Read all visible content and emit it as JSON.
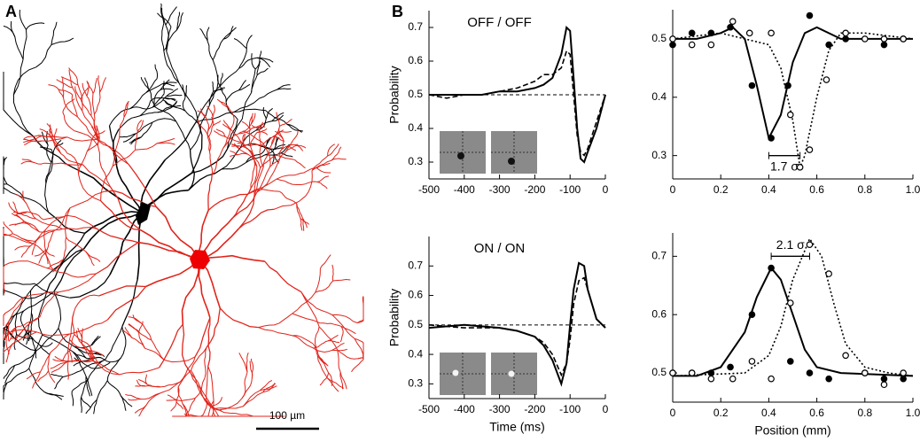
{
  "panel_labels": [
    "A",
    "B"
  ],
  "scale_bar": "100 µm",
  "chart_data": [
    {
      "type": "line",
      "title": "OFF / OFF",
      "ylabel": "Probability",
      "xlim": [
        -500,
        0
      ],
      "ylim": [
        0.25,
        0.75
      ],
      "xticks": [
        -500,
        -400,
        -300,
        -200,
        -100,
        0
      ],
      "yticks": [
        0.3,
        0.4,
        0.5,
        0.6,
        0.7
      ],
      "hline": 0.5,
      "x": [
        -500,
        -450,
        -400,
        -350,
        -300,
        -250,
        -200,
        -175,
        -150,
        -125,
        -110,
        -100,
        -90,
        -80,
        -70,
        -60,
        -50,
        -25,
        0
      ],
      "series": [
        {
          "color": "#000000",
          "style": "solid",
          "values": [
            0.5,
            0.5,
            0.5,
            0.5,
            0.51,
            0.51,
            0.52,
            0.53,
            0.55,
            0.62,
            0.7,
            0.69,
            0.55,
            0.4,
            0.31,
            0.3,
            0.33,
            0.4,
            0.5
          ]
        },
        {
          "color": "#000000",
          "style": "dashed",
          "values": [
            0.5,
            0.49,
            0.5,
            0.5,
            0.51,
            0.52,
            0.54,
            0.56,
            0.56,
            0.58,
            0.63,
            0.62,
            0.5,
            0.38,
            0.33,
            0.32,
            0.34,
            0.42,
            0.5
          ]
        }
      ]
    },
    {
      "type": "line",
      "title": "ON / ON",
      "ylabel": "Probability",
      "xlabel": "Time (ms)",
      "xlim": [
        -500,
        0
      ],
      "ylim": [
        0.25,
        0.8
      ],
      "xticks": [
        -500,
        -400,
        -300,
        -200,
        -100,
        0
      ],
      "yticks": [
        0.3,
        0.4,
        0.5,
        0.6,
        0.7
      ],
      "hline": 0.5,
      "x": [
        -500,
        -400,
        -300,
        -250,
        -200,
        -175,
        -150,
        -125,
        -110,
        -100,
        -90,
        -75,
        -60,
        -50,
        -25,
        0
      ],
      "series": [
        {
          "color": "#000000",
          "style": "solid",
          "values": [
            0.49,
            0.5,
            0.49,
            0.48,
            0.46,
            0.43,
            0.38,
            0.3,
            0.37,
            0.5,
            0.62,
            0.71,
            0.7,
            0.62,
            0.52,
            0.49
          ]
        },
        {
          "color": "#000000",
          "style": "dashed",
          "values": [
            0.5,
            0.49,
            0.49,
            0.48,
            0.46,
            0.44,
            0.4,
            0.33,
            0.37,
            0.45,
            0.57,
            0.65,
            0.66,
            0.62,
            0.52,
            0.49
          ]
        }
      ]
    },
    {
      "type": "line",
      "xlim": [
        0,
        1
      ],
      "ylim": [
        0.26,
        0.55
      ],
      "xticks": [
        0,
        0.2,
        0.4,
        0.6,
        0.8,
        {
          "value": 1,
          "label": "1.0"
        }
      ],
      "yticks": [
        0.3,
        0.4,
        0.5
      ],
      "bracket": {
        "x": [
          0.4,
          0.53
        ],
        "y": 0.3,
        "label": "1.7 σ",
        "label_position": "below"
      },
      "series": [
        {
          "color": "#000000",
          "style": "solid",
          "x": [
            0,
            0.1,
            0.2,
            0.25,
            0.3,
            0.35,
            0.4,
            0.45,
            0.5,
            0.55,
            0.6,
            0.7,
            0.8,
            1
          ],
          "values": [
            0.5,
            0.5,
            0.51,
            0.52,
            0.5,
            0.42,
            0.33,
            0.37,
            0.46,
            0.51,
            0.52,
            0.5,
            0.5,
            0.5
          ]
        },
        {
          "color": "#000000",
          "style": "dotted",
          "x": [
            0,
            0.2,
            0.3,
            0.4,
            0.45,
            0.5,
            0.53,
            0.55,
            0.6,
            0.65,
            0.7,
            0.8,
            1
          ],
          "values": [
            0.5,
            0.51,
            0.5,
            0.49,
            0.45,
            0.36,
            0.28,
            0.3,
            0.4,
            0.48,
            0.51,
            0.51,
            0.5
          ]
        },
        {
          "color": "#000000",
          "style": "points-filled",
          "x": [
            0,
            0.08,
            0.16,
            0.24,
            0.33,
            0.41,
            0.48,
            0.57,
            0.65,
            0.72,
            0.88,
            0.96
          ],
          "values": [
            0.49,
            0.51,
            0.51,
            0.52,
            0.42,
            0.33,
            0.42,
            0.54,
            0.49,
            0.5,
            0.49,
            0.5
          ]
        },
        {
          "color": "#000000",
          "style": "points-open",
          "x": [
            0,
            0.08,
            0.16,
            0.25,
            0.32,
            0.41,
            0.49,
            0.53,
            0.57,
            0.64,
            0.72,
            0.8,
            0.88,
            0.96
          ],
          "values": [
            0.5,
            0.49,
            0.49,
            0.53,
            0.51,
            0.51,
            0.37,
            0.28,
            0.31,
            0.43,
            0.51,
            0.5,
            0.5,
            0.5
          ]
        }
      ]
    },
    {
      "type": "line",
      "xlabel": "Position (mm)",
      "xlim": [
        0,
        1
      ],
      "ylim": [
        0.45,
        0.74
      ],
      "xticks": [
        0,
        0.2,
        0.4,
        0.6,
        0.8,
        {
          "value": 1,
          "label": "1.0"
        }
      ],
      "yticks": [
        0.5,
        0.6,
        0.7
      ],
      "bracket": {
        "x": [
          0.41,
          0.57
        ],
        "y": 0.7,
        "label": "2.1 σ",
        "label_position": "above"
      },
      "series": [
        {
          "color": "#000000",
          "style": "solid",
          "x": [
            0,
            0.1,
            0.2,
            0.3,
            0.35,
            0.41,
            0.45,
            0.5,
            0.55,
            0.6,
            0.7,
            1
          ],
          "values": [
            0.495,
            0.495,
            0.51,
            0.57,
            0.63,
            0.68,
            0.66,
            0.6,
            0.54,
            0.51,
            0.5,
            0.495
          ]
        },
        {
          "color": "#000000",
          "style": "dotted",
          "x": [
            0,
            0.3,
            0.4,
            0.45,
            0.5,
            0.57,
            0.62,
            0.67,
            0.72,
            0.8,
            0.9,
            1
          ],
          "values": [
            0.495,
            0.5,
            0.53,
            0.58,
            0.66,
            0.73,
            0.7,
            0.62,
            0.55,
            0.51,
            0.5,
            0.495
          ]
        },
        {
          "color": "#000000",
          "style": "points-filled",
          "x": [
            0,
            0.08,
            0.16,
            0.24,
            0.33,
            0.41,
            0.49,
            0.57,
            0.65,
            0.8,
            0.88,
            0.96
          ],
          "values": [
            0.5,
            0.5,
            0.5,
            0.51,
            0.6,
            0.68,
            0.52,
            0.5,
            0.49,
            0.5,
            0.49,
            0.49
          ]
        },
        {
          "color": "#000000",
          "style": "points-open",
          "x": [
            0,
            0.08,
            0.16,
            0.25,
            0.33,
            0.41,
            0.49,
            0.57,
            0.65,
            0.72,
            0.8,
            0.88,
            0.96
          ],
          "values": [
            0.5,
            0.5,
            0.49,
            0.49,
            0.52,
            0.49,
            0.62,
            0.72,
            0.67,
            0.53,
            0.5,
            0.48,
            0.5
          ]
        }
      ]
    }
  ]
}
